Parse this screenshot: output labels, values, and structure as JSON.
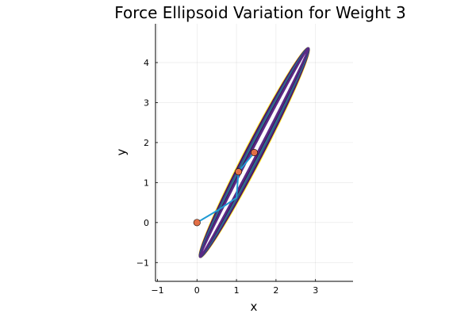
{
  "chart_data": {
    "type": "line",
    "title": "Force Ellipsoid Variation for Weight 3",
    "xlabel": "x",
    "ylabel": "y",
    "xlim": [
      -1.05,
      3.95
    ],
    "ylim": [
      -1.47,
      4.97
    ],
    "xticks": [
      -1,
      0,
      1,
      2,
      3
    ],
    "yticks": [
      -1,
      0,
      1,
      2,
      3,
      4
    ],
    "grid": true,
    "legend": "none",
    "aspect_ratio": "equal",
    "ellipsoids": {
      "center": [
        1.45,
        1.75
      ],
      "major_axis_direction_deg": 62.3,
      "semi_major": 2.95,
      "semi_minor_values": [
        0.22,
        0.2,
        0.18,
        0.16,
        0.14,
        0.12,
        0.1,
        0.085,
        0.07
      ],
      "colors": [
        "#fde725",
        "#440154",
        "#482878",
        "#3e4989",
        "#31688e",
        "#26828e",
        "#440154",
        "#482878",
        "#5b2a86"
      ]
    },
    "series": [
      {
        "type": "line",
        "x": [
          0.0,
          0.55,
          1.0,
          1.05,
          1.45
        ],
        "y": [
          0.0,
          0.32,
          0.62,
          1.27,
          1.75
        ],
        "color": "#1f9bd4"
      },
      {
        "type": "scatter",
        "x": [
          0.0,
          1.05,
          1.45
        ],
        "y": [
          0.0,
          1.27,
          1.75
        ],
        "color": "#e26f46"
      }
    ]
  }
}
